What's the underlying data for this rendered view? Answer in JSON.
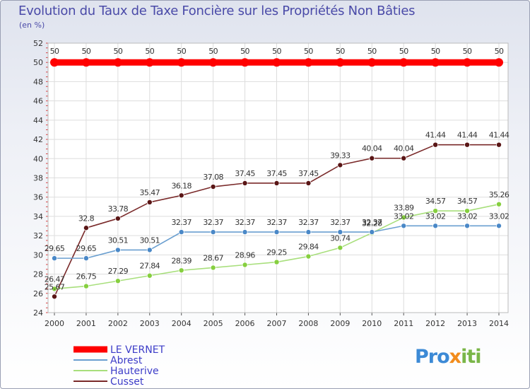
{
  "title": "Evolution du Taux de Taxe Foncière sur les Propriétés Non Bâties",
  "unit_label": "(en %)",
  "logo": {
    "parts": [
      "Pro",
      "x",
      "iti"
    ],
    "colors": [
      "#3c8ad6",
      "#f28c1c",
      "#7ab648"
    ]
  },
  "chart_data": {
    "type": "line",
    "x": [
      2000,
      2001,
      2002,
      2003,
      2004,
      2005,
      2006,
      2007,
      2008,
      2009,
      2010,
      2011,
      2012,
      2013,
      2014
    ],
    "ylim": [
      24,
      52
    ],
    "yticks": [
      24,
      26,
      28,
      30,
      32,
      34,
      36,
      38,
      40,
      42,
      44,
      46,
      48,
      50,
      52
    ],
    "grid": true,
    "legend_position": "bottom-left",
    "series": [
      {
        "name": "LE VERNET",
        "color": "#ff0000",
        "marker": "#ff0000",
        "values": [
          50,
          50,
          50,
          50,
          50,
          50,
          50,
          50,
          50,
          50,
          50,
          50,
          50,
          50,
          50
        ],
        "labels": [
          "50",
          "50",
          "50",
          "50",
          "50",
          "50",
          "50",
          "50",
          "50",
          "50",
          "50",
          "50",
          "50",
          "50",
          "50"
        ]
      },
      {
        "name": "Abrest",
        "color": "#6a9fd0",
        "marker": "#4a88c7",
        "values": [
          29.65,
          29.65,
          30.51,
          30.51,
          32.37,
          32.37,
          32.37,
          32.37,
          32.37,
          32.37,
          32.37,
          33.02,
          33.02,
          33.02,
          33.02
        ],
        "labels": [
          "29.65",
          "29.65",
          "30.51",
          "30.51",
          "32.37",
          "32.37",
          "32.37",
          "32.37",
          "32.37",
          "32.37",
          "32.37",
          "33.02",
          "33.02",
          "33.02",
          "33.02"
        ]
      },
      {
        "name": "Hauterive",
        "color": "#a8df7c",
        "marker": "#86cf3f",
        "values": [
          26.47,
          26.75,
          27.29,
          27.84,
          28.39,
          28.67,
          28.96,
          29.25,
          29.84,
          30.74,
          32.28,
          33.89,
          34.57,
          34.57,
          35.26
        ],
        "labels": [
          "26.47",
          "26.75",
          "27.29",
          "27.84",
          "28.39",
          "28.67",
          "28.96",
          "29.25",
          "29.84",
          "30.74",
          "32.28",
          "33.89",
          "34.57",
          "34.57",
          "35.26"
        ]
      },
      {
        "name": "Cusset",
        "color": "#7a2a2a",
        "marker": "#5a1616",
        "values": [
          25.67,
          32.8,
          33.78,
          35.47,
          36.18,
          37.08,
          37.45,
          37.45,
          37.45,
          39.33,
          40.04,
          40.04,
          41.44,
          41.44,
          41.44
        ],
        "labels": [
          "25.67",
          "32.8",
          "33.78",
          "35.47",
          "36.18",
          "37.08",
          "37.45",
          "37.45",
          "37.45",
          "39.33",
          "40.04",
          "40.04",
          "41.44",
          "41.44",
          "41.44"
        ]
      }
    ]
  }
}
